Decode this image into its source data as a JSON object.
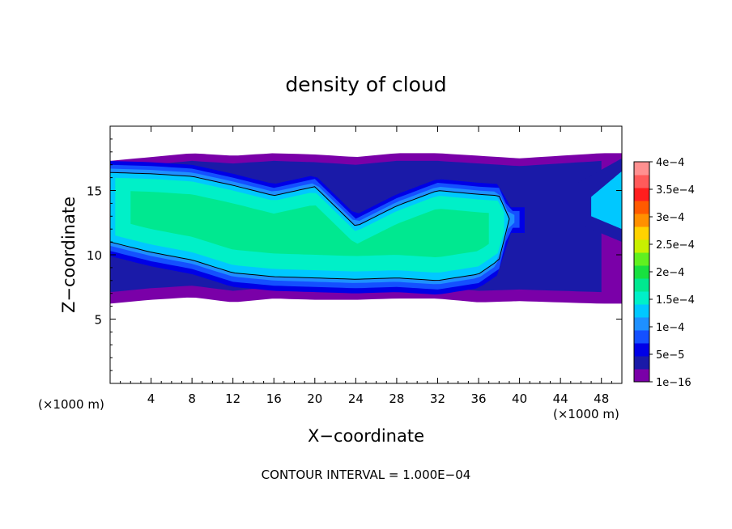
{
  "chart_data": {
    "type": "heatmap",
    "title": "density of cloud",
    "xlabel": "X−coordinate",
    "ylabel": "Z−coordinate",
    "x_unit_left": "(×1000 m)",
    "x_unit_right": "(×1000 m)",
    "footer": "CONTOUR INTERVAL = 1.000E−04",
    "xlim": [
      0,
      50
    ],
    "ylim": [
      0,
      20
    ],
    "x_ticks": [
      4,
      8,
      12,
      16,
      20,
      24,
      28,
      32,
      36,
      40,
      44,
      48
    ],
    "y_ticks": [
      5,
      10,
      15
    ],
    "x_tick_labels": [
      "4",
      "8",
      "12",
      "16",
      "20",
      "24",
      "28",
      "32",
      "36",
      "40",
      "44",
      "48"
    ],
    "y_tick_labels": [
      "5",
      "10",
      "15"
    ],
    "contour_levels": [
      0.0001
    ],
    "colorbar": {
      "labels": [
        "4e−4",
        "3.5e−4",
        "3e−4",
        "2.5e−4",
        "2e−4",
        "1.5e−4",
        "1e−4",
        "5e−5",
        "1e−16"
      ],
      "values": [
        0.0004,
        0.00035,
        0.0003,
        0.00025,
        0.0002,
        0.00015,
        0.0001,
        5e-05,
        1e-16
      ],
      "colors": [
        "#7a00a8",
        "#1a1aa8",
        "#0000e6",
        "#1450ff",
        "#1e90ff",
        "#00c8ff",
        "#00f0c8",
        "#00e890",
        "#18e040",
        "#60f020",
        "#c8f000",
        "#ffd200",
        "#ff9000",
        "#ff5a00",
        "#ff1e1e",
        "#ff5a5a",
        "#ff9090"
      ]
    },
    "fields": {
      "cloud_top_km": [
        [
          0,
          17.3
        ],
        [
          4,
          17.6
        ],
        [
          8,
          17.9
        ],
        [
          12,
          17.7
        ],
        [
          16,
          17.9
        ],
        [
          20,
          17.8
        ],
        [
          24,
          17.6
        ],
        [
          28,
          17.9
        ],
        [
          32,
          17.9
        ],
        [
          36,
          17.7
        ],
        [
          40,
          17.5
        ],
        [
          44,
          17.7
        ],
        [
          48,
          17.9
        ],
        [
          50,
          17.9
        ]
      ],
      "cloud_bottom_km": [
        [
          0,
          6.2
        ],
        [
          4,
          6.5
        ],
        [
          8,
          6.7
        ],
        [
          12,
          6.3
        ],
        [
          16,
          6.6
        ],
        [
          20,
          6.5
        ],
        [
          24,
          6.5
        ],
        [
          28,
          6.6
        ],
        [
          32,
          6.6
        ],
        [
          36,
          6.3
        ],
        [
          40,
          6.4
        ],
        [
          44,
          6.3
        ],
        [
          48,
          6.2
        ],
        [
          50,
          6.2
        ]
      ],
      "core_top_km": [
        [
          0,
          16.4
        ],
        [
          4,
          16.3
        ],
        [
          8,
          16.1
        ],
        [
          12,
          15.4
        ],
        [
          16,
          14.6
        ],
        [
          20,
          15.3
        ],
        [
          24,
          12.2
        ],
        [
          28,
          13.8
        ],
        [
          32,
          15.0
        ],
        [
          36,
          14.7
        ],
        [
          38,
          14.6
        ],
        [
          39,
          12.8
        ]
      ],
      "core_bottom_km": [
        [
          0,
          11.0
        ],
        [
          4,
          10.2
        ],
        [
          8,
          9.6
        ],
        [
          12,
          8.6
        ],
        [
          16,
          8.3
        ],
        [
          20,
          8.2
        ],
        [
          24,
          8.1
        ],
        [
          28,
          8.2
        ],
        [
          32,
          8.0
        ],
        [
          36,
          8.5
        ],
        [
          38,
          9.6
        ],
        [
          39,
          12.8
        ]
      ]
    }
  }
}
